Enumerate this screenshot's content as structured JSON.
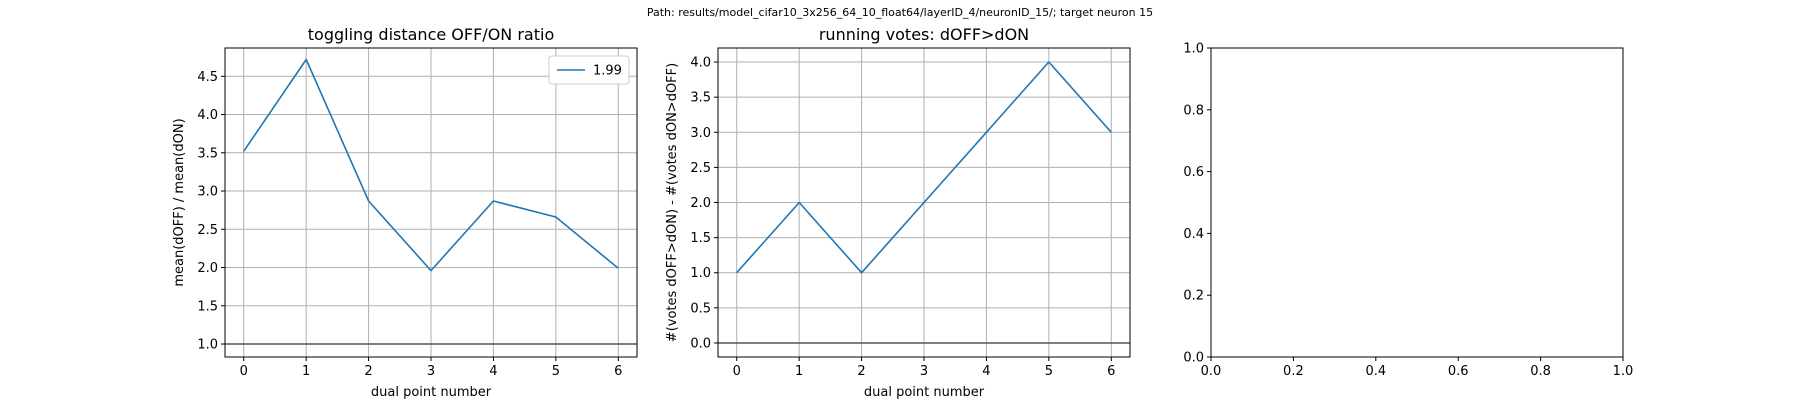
{
  "figure": {
    "suptitle": "Path: results/model_cifar10_3x256_64_10_float64/layerID_4/neuronID_15/; target neuron 15"
  },
  "chart_data": [
    {
      "type": "line",
      "title": "toggling distance OFF/ON ratio",
      "xlabel": "dual point number",
      "ylabel": "mean(dOFF) / mean(dON)",
      "xlim": [
        -0.3,
        6.3
      ],
      "ylim": [
        0.83,
        4.87
      ],
      "xticks": [
        0,
        1,
        2,
        3,
        4,
        5,
        6
      ],
      "yticks": [
        1.0,
        1.5,
        2.0,
        2.5,
        3.0,
        3.5,
        4.0,
        4.5
      ],
      "grid": true,
      "legend_position": "upper right",
      "series": [
        {
          "name": "1.99",
          "color": "#1f77b4",
          "x": [
            0,
            1,
            2,
            3,
            4,
            5,
            6
          ],
          "y": [
            3.52,
            4.72,
            2.87,
            1.96,
            2.87,
            2.66,
            1.99
          ]
        }
      ],
      "hlines": [
        {
          "y": 1.0,
          "color": "#555555"
        }
      ]
    },
    {
      "type": "line",
      "title": "running votes: dOFF>dON",
      "xlabel": "dual point number",
      "ylabel": "#(votes dOFF>dON) - #(votes dON>dOFF)",
      "xlim": [
        -0.3,
        6.3
      ],
      "ylim": [
        -0.2,
        4.2
      ],
      "xticks": [
        0,
        1,
        2,
        3,
        4,
        5,
        6
      ],
      "yticks": [
        0.0,
        0.5,
        1.0,
        1.5,
        2.0,
        2.5,
        3.0,
        3.5,
        4.0
      ],
      "grid": true,
      "series": [
        {
          "color": "#1f77b4",
          "x": [
            0,
            1,
            2,
            3,
            4,
            5,
            6
          ],
          "y": [
            1,
            2,
            1,
            2,
            3,
            4,
            3
          ]
        }
      ],
      "hlines": [
        {
          "y": 0.0,
          "color": "#555555"
        }
      ]
    },
    {
      "type": "line",
      "title": "",
      "xlabel": "",
      "ylabel": "",
      "xlim": [
        0.0,
        1.0
      ],
      "ylim": [
        0.0,
        1.0
      ],
      "xticks": [
        0.0,
        0.2,
        0.4,
        0.6,
        0.8,
        1.0
      ],
      "yticks": [
        0.0,
        0.2,
        0.4,
        0.6,
        0.8,
        1.0
      ],
      "grid": false,
      "series": []
    }
  ]
}
